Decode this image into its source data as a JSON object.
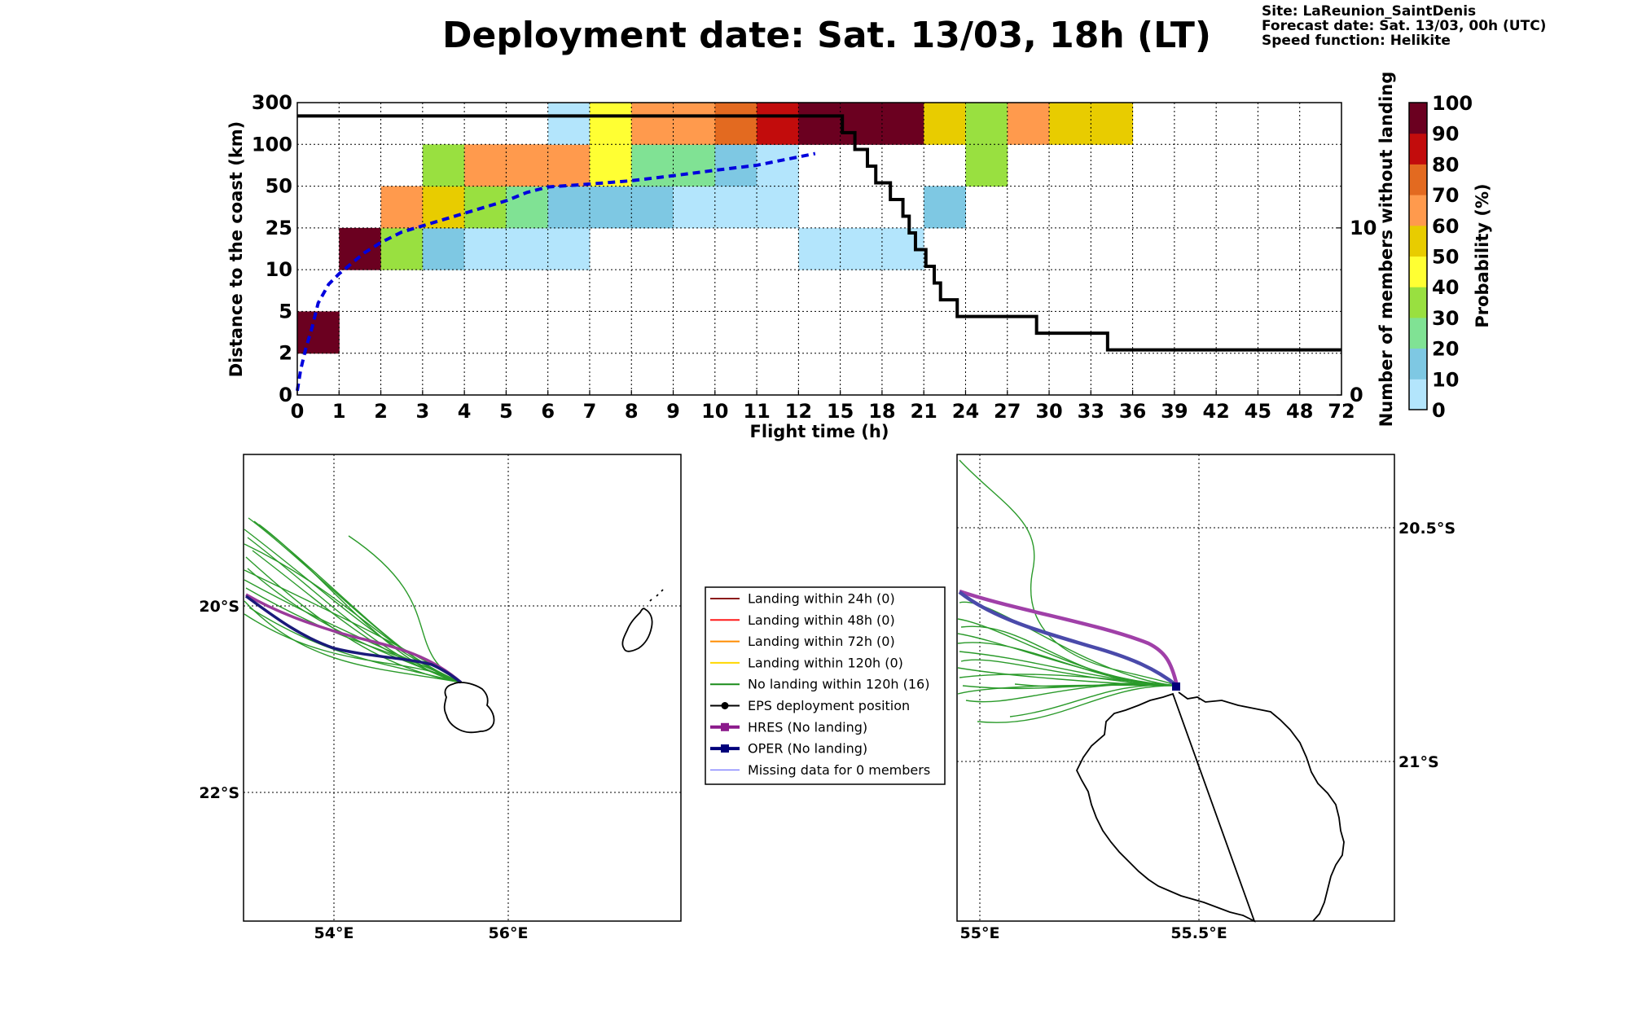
{
  "header": {
    "title": "Deployment date: Sat. 13/03, 18h (LT)",
    "site": "Site: LaReunion_SaintDenis",
    "forecast": "Forecast date: Sat. 13/03, 00h (UTC)",
    "speed": "Speed function: Helikite"
  },
  "chart_data": [
    {
      "type": "heatmap",
      "xlabel": "Flight time (h)",
      "ylabel": "Distance to the coast (km)",
      "ylabel_right": "Number of members without landing",
      "colorbar_label": "Probability (%)",
      "x_ticks": [
        "0",
        "1",
        "2",
        "3",
        "4",
        "5",
        "6",
        "7",
        "8",
        "9",
        "10",
        "11",
        "12",
        "15",
        "18",
        "21",
        "24",
        "27",
        "30",
        "33",
        "36",
        "39",
        "42",
        "45",
        "48",
        "72"
      ],
      "y_ticks": [
        "0",
        "2",
        "5",
        "10",
        "25",
        "50",
        "100",
        "300"
      ],
      "right_ticks": [
        {
          "label": "0",
          "value": 0
        },
        {
          "label": "10",
          "value": 10
        }
      ],
      "right_max": 17.5,
      "colorbar_ticks": [
        "0",
        "10",
        "20",
        "30",
        "40",
        "50",
        "60",
        "70",
        "80",
        "90",
        "100"
      ],
      "colors": [
        "#b3e5fc",
        "#7ec8e3",
        "#80e294",
        "#99e040",
        "#ffff33",
        "#e8cc00",
        "#ff9a4d",
        "#e36a20",
        "#c20c0c",
        "#6b0020"
      ],
      "grid": true,
      "cells": [
        {
          "x": 0,
          "y": 1,
          "p": 100
        },
        {
          "x": 1,
          "y": 3,
          "p": 100
        },
        {
          "x": 2,
          "y": 3,
          "p": 30
        },
        {
          "x": 3,
          "y": 3,
          "p": 10
        },
        {
          "x": 4,
          "y": 3,
          "p": 0
        },
        {
          "x": 5,
          "y": 3,
          "p": 0
        },
        {
          "x": 6,
          "y": 3,
          "p": 0
        },
        {
          "x": 12,
          "y": 3,
          "p": 0
        },
        {
          "x": 13,
          "y": 3,
          "p": 0
        },
        {
          "x": 14,
          "y": 3,
          "p": 0
        },
        {
          "x": 2,
          "y": 4,
          "p": 60
        },
        {
          "x": 3,
          "y": 4,
          "p": 50
        },
        {
          "x": 4,
          "y": 4,
          "p": 30
        },
        {
          "x": 5,
          "y": 4,
          "p": 20
        },
        {
          "x": 6,
          "y": 4,
          "p": 10
        },
        {
          "x": 7,
          "y": 4,
          "p": 10
        },
        {
          "x": 8,
          "y": 4,
          "p": 10
        },
        {
          "x": 9,
          "y": 4,
          "p": 0
        },
        {
          "x": 10,
          "y": 4,
          "p": 0
        },
        {
          "x": 11,
          "y": 4,
          "p": 0
        },
        {
          "x": 15,
          "y": 4,
          "p": 10
        },
        {
          "x": 3,
          "y": 5,
          "p": 30
        },
        {
          "x": 4,
          "y": 5,
          "p": 60
        },
        {
          "x": 5,
          "y": 5,
          "p": 60
        },
        {
          "x": 6,
          "y": 5,
          "p": 60
        },
        {
          "x": 7,
          "y": 5,
          "p": 40
        },
        {
          "x": 8,
          "y": 5,
          "p": 20
        },
        {
          "x": 9,
          "y": 5,
          "p": 20
        },
        {
          "x": 10,
          "y": 5,
          "p": 10
        },
        {
          "x": 11,
          "y": 5,
          "p": 0
        },
        {
          "x": 16,
          "y": 5,
          "p": 30
        },
        {
          "x": 6,
          "y": 6,
          "p": 0
        },
        {
          "x": 7,
          "y": 6,
          "p": 40
        },
        {
          "x": 8,
          "y": 6,
          "p": 60
        },
        {
          "x": 9,
          "y": 6,
          "p": 60
        },
        {
          "x": 10,
          "y": 6,
          "p": 70
        },
        {
          "x": 11,
          "y": 6,
          "p": 80
        },
        {
          "x": 12,
          "y": 6,
          "p": 100
        },
        {
          "x": 13,
          "y": 6,
          "p": 100
        },
        {
          "x": 14,
          "y": 6,
          "p": 100
        },
        {
          "x": 15,
          "y": 6,
          "p": 50
        },
        {
          "x": 16,
          "y": 6,
          "p": 30
        },
        {
          "x": 17,
          "y": 6,
          "p": 60
        },
        {
          "x": 18,
          "y": 6,
          "p": 50
        },
        {
          "x": 19,
          "y": 6,
          "p": 50
        }
      ],
      "series": [
        {
          "type": "step",
          "axis": "right",
          "points": [
            [
              0,
              16.7
            ],
            [
              12.9,
              16.7
            ],
            [
              13.05,
              15.7
            ],
            [
              13.35,
              14.7
            ],
            [
              13.65,
              13.7
            ],
            [
              13.85,
              12.7
            ],
            [
              14.2,
              11.7
            ],
            [
              14.5,
              10.7
            ],
            [
              14.65,
              9.7
            ],
            [
              14.8,
              8.7
            ],
            [
              15.05,
              7.7
            ],
            [
              15.25,
              6.7
            ],
            [
              15.4,
              5.7
            ],
            [
              15.8,
              4.7
            ],
            [
              17.7,
              4.7
            ],
            [
              17.7,
              3.7
            ],
            [
              19.4,
              3.7
            ],
            [
              19.4,
              2.7
            ],
            [
              25,
              2.7
            ]
          ]
        },
        {
          "type": "line",
          "style": "dashed",
          "color": "#0000dd",
          "axis": "left",
          "points": [
            [
              0,
              0.1
            ],
            [
              0.08,
              0.6
            ],
            [
              0.2,
              1.1
            ],
            [
              0.35,
              1.6
            ],
            [
              0.5,
              2.2
            ],
            [
              0.75,
              2.65
            ],
            [
              1,
              2.9
            ],
            [
              1.3,
              3.15
            ],
            [
              1.6,
              3.4
            ],
            [
              2,
              3.65
            ],
            [
              2.5,
              3.9
            ],
            [
              3,
              4.05
            ],
            [
              3.5,
              4.2
            ],
            [
              4,
              4.35
            ],
            [
              4.5,
              4.5
            ],
            [
              5,
              4.65
            ],
            [
              5.5,
              4.85
            ],
            [
              6,
              4.98
            ],
            [
              7,
              5.05
            ],
            [
              8,
              5.13
            ],
            [
              9,
              5.25
            ],
            [
              10,
              5.38
            ],
            [
              11,
              5.5
            ],
            [
              12.4,
              5.78
            ]
          ]
        }
      ]
    }
  ],
  "maps": {
    "left": {
      "lat_labels": [
        "20°S",
        "22°S"
      ],
      "lon_labels": [
        "54°E",
        "56°E"
      ]
    },
    "right": {
      "lat_labels": [
        "20.5°S",
        "21°S"
      ],
      "lon_labels": [
        "55°E",
        "55.5°E"
      ]
    }
  },
  "legend": [
    {
      "label": "Landing within 24h (0)",
      "color": "#8b1a1a",
      "marker": "none",
      "width": 2
    },
    {
      "label": "Landing within 48h (0)",
      "color": "#ff1a1a",
      "marker": "none",
      "width": 2
    },
    {
      "label": "Landing within 72h (0)",
      "color": "#ff8c00",
      "marker": "none",
      "width": 2
    },
    {
      "label": "Landing within 120h (0)",
      "color": "#ffd700",
      "marker": "none",
      "width": 2
    },
    {
      "label": "No landing within 120h (16)",
      "color": "#1a8c1a",
      "marker": "none",
      "width": 2
    },
    {
      "label": "EPS deployment position",
      "color": "#000000",
      "marker": "circle",
      "width": 2
    },
    {
      "label": "HRES (No landing)",
      "color": "#8b1a8b",
      "marker": "square",
      "width": 4
    },
    {
      "label": "OPER (No landing)",
      "color": "#00007a",
      "marker": "square",
      "width": 4
    },
    {
      "label": "Missing data for 0 members",
      "color": "#5555ff",
      "marker": "none",
      "width": 1
    }
  ]
}
